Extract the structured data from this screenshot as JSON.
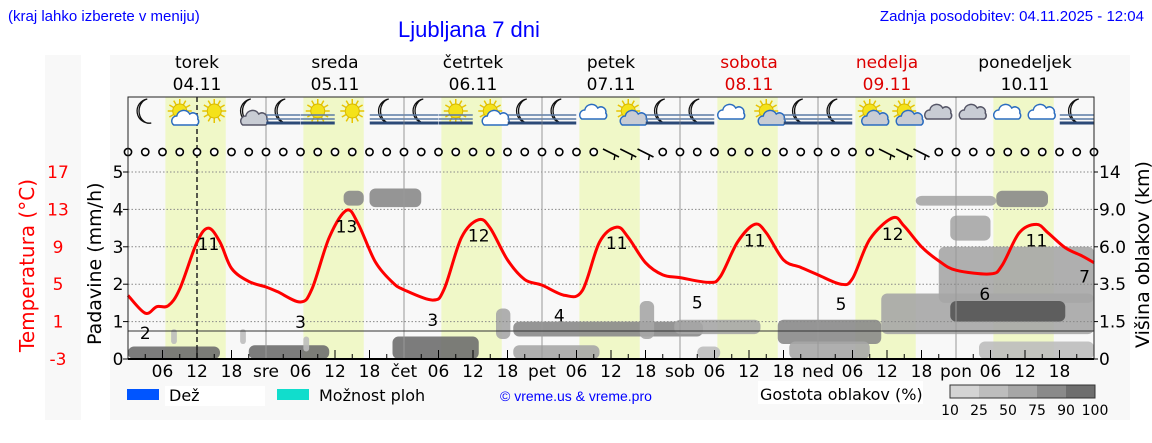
{
  "header": {
    "menu_hint": "(kraj lahko izberete v meniju)",
    "title": "Ljubljana 7 dni",
    "updated": "Zadnja posodobitev: 04.11.2025 - 12:04"
  },
  "footer": {
    "legend_rain": "Dež",
    "legend_showers": "Možnost ploh",
    "copyright": "© vreme.us & vreme.pro",
    "cloud_density_label": "Gostota oblakov (%)",
    "cloud_density_scale": [
      "10",
      "25",
      "50",
      "75",
      "90",
      "100"
    ]
  },
  "colors": {
    "temperature": "#ff0000",
    "rain": "#0055ff",
    "showers": "#11ddcc",
    "daylight": "#f0f8c8",
    "links": "#0000ff",
    "weekend": "#dd0000"
  },
  "chart_data": {
    "type": "line",
    "title": "Ljubljana 7 dni",
    "x_unit": "hours from torek 04.11 00:00",
    "now_marker_hour": 12,
    "days": [
      {
        "name": "torek",
        "date": "04.11",
        "abbr": "",
        "weekend": false
      },
      {
        "name": "sreda",
        "date": "05.11",
        "abbr": "sre",
        "weekend": false
      },
      {
        "name": "četrtek",
        "date": "06.11",
        "abbr": "čet",
        "weekend": false
      },
      {
        "name": "petek",
        "date": "07.11",
        "abbr": "pet",
        "weekend": false
      },
      {
        "name": "sobota",
        "date": "08.11",
        "abbr": "sob",
        "weekend": true
      },
      {
        "name": "nedelja",
        "date": "09.11",
        "abbr": "ned",
        "weekend": true
      },
      {
        "name": "ponedeljek",
        "date": "10.11",
        "abbr": "pon",
        "weekend": false
      }
    ],
    "hour_ticks": [
      "06",
      "12",
      "18"
    ],
    "daylight_hours": [
      6.5,
      17
    ],
    "axes": {
      "temperature": {
        "label": "Temperatura (°C)",
        "ticks": [
          17,
          13,
          9,
          5,
          1,
          -3
        ],
        "range": [
          -3,
          17
        ]
      },
      "precipitation": {
        "label": "Padavine (mm/h)",
        "ticks": [
          0,
          1,
          2,
          3,
          4,
          5
        ],
        "range": [
          0,
          5
        ]
      },
      "cloud_height": {
        "label": "Višina oblakov (km)",
        "ticks": [
          "0",
          "1.5",
          "3.5",
          "6.0",
          "9.0",
          "14"
        ]
      }
    },
    "temperature_series": {
      "hours": [
        0,
        3,
        5,
        7,
        9,
        12,
        14,
        16,
        18,
        21,
        24,
        26,
        30,
        32,
        35,
        38,
        40,
        43,
        46,
        48,
        53,
        55,
        58,
        61,
        63,
        66,
        69,
        72,
        76,
        79,
        82,
        85,
        87,
        90,
        93,
        96,
        101,
        103,
        106,
        109,
        111,
        114,
        117,
        120,
        124,
        126,
        129,
        133,
        135,
        138,
        141,
        144,
        150,
        152,
        155,
        158,
        160,
        163,
        166,
        168
      ],
      "values": [
        3.8,
        1.9,
        2.6,
        2.7,
        4.5,
        9.5,
        11.0,
        9.5,
        6.7,
        5.3,
        4.7,
        4.2,
        3.1,
        4.5,
        10.0,
        12.9,
        11.5,
        7.4,
        5.2,
        4.4,
        3.3,
        4.5,
        10.0,
        11.9,
        11.0,
        7.6,
        5.5,
        4.9,
        3.8,
        4.3,
        9.5,
        11.1,
        10.0,
        7.3,
        6.0,
        5.7,
        5.2,
        5.8,
        9.5,
        11.4,
        10.5,
        7.6,
        6.8,
        6.0,
        5.0,
        5.6,
        9.8,
        12.1,
        11.2,
        9.0,
        7.5,
        6.5,
        6.1,
        7.0,
        10.5,
        11.4,
        10.5,
        8.9,
        8.0,
        7.3
      ]
    },
    "temperature_labels": [
      {
        "hour": 3,
        "value": "2",
        "kind": "min"
      },
      {
        "hour": 14,
        "value": "11",
        "kind": "max"
      },
      {
        "hour": 30,
        "value": "3",
        "kind": "min"
      },
      {
        "hour": 38,
        "value": "13",
        "kind": "max"
      },
      {
        "hour": 53,
        "value": "3",
        "kind": "min"
      },
      {
        "hour": 61,
        "value": "12",
        "kind": "max"
      },
      {
        "hour": 75,
        "value": "4",
        "kind": "min"
      },
      {
        "hour": 85,
        "value": "11",
        "kind": "max"
      },
      {
        "hour": 99,
        "value": "5",
        "kind": "min"
      },
      {
        "hour": 109,
        "value": "11",
        "kind": "max"
      },
      {
        "hour": 124,
        "value": "5",
        "kind": "min"
      },
      {
        "hour": 133,
        "value": "12",
        "kind": "max"
      },
      {
        "hour": 149,
        "value": "6",
        "kind": "min"
      },
      {
        "hour": 158,
        "value": "11",
        "kind": "max"
      },
      {
        "hour": 168,
        "value": "7",
        "kind": "end"
      }
    ],
    "precipitation_mm_h": [],
    "cloud_patches": [
      {
        "h0": 0,
        "h1": 16,
        "km0": 0,
        "km1": 0.5,
        "density": 90
      },
      {
        "h0": 7.5,
        "h1": 8.5,
        "km0": 0.6,
        "km1": 1.2,
        "density": 25
      },
      {
        "h0": 19.5,
        "h1": 20.5,
        "km0": 0.6,
        "km1": 1.2,
        "density": 25
      },
      {
        "h0": 21,
        "h1": 35,
        "km0": 0,
        "km1": 0.55,
        "density": 90
      },
      {
        "h0": 30.5,
        "h1": 31.5,
        "km0": 0.3,
        "km1": 0.9,
        "density": 25
      },
      {
        "h0": 37.5,
        "h1": 41,
        "km0": 9.5,
        "km1": 11.5,
        "density": 75
      },
      {
        "h0": 42,
        "h1": 51,
        "km0": 9.3,
        "km1": 11.8,
        "density": 75
      },
      {
        "h0": 46,
        "h1": 61,
        "km0": 0,
        "km1": 0.9,
        "density": 90
      },
      {
        "h0": 64,
        "h1": 66.5,
        "km0": 0.8,
        "km1": 2.2,
        "density": 50
      },
      {
        "h0": 67,
        "h1": 100,
        "km0": 0.9,
        "km1": 1.5,
        "density": 75
      },
      {
        "h0": 67,
        "h1": 82,
        "km0": 0,
        "km1": 0.55,
        "density": 50
      },
      {
        "h0": 89,
        "h1": 91.5,
        "km0": 0.8,
        "km1": 2.6,
        "density": 50
      },
      {
        "h0": 95,
        "h1": 110,
        "km0": 1.0,
        "km1": 1.6,
        "density": 50
      },
      {
        "h0": 99,
        "h1": 103,
        "km0": 0,
        "km1": 0.5,
        "density": 25
      },
      {
        "h0": 113,
        "h1": 131,
        "km0": 0.6,
        "km1": 1.6,
        "density": 75
      },
      {
        "h0": 115,
        "h1": 129,
        "km0": 0,
        "km1": 0.7,
        "density": 50
      },
      {
        "h0": 131,
        "h1": 168,
        "km0": 1.0,
        "km1": 3.0,
        "density": 50
      },
      {
        "h0": 141,
        "h1": 168,
        "km0": 2.5,
        "km1": 6.0,
        "density": 50
      },
      {
        "h0": 143,
        "h1": 163,
        "km0": 1.5,
        "km1": 2.6,
        "density": 100
      },
      {
        "h0": 137,
        "h1": 151,
        "km0": 9.5,
        "km1": 10.8,
        "density": 50
      },
      {
        "h0": 151,
        "h1": 160,
        "km0": 9.3,
        "km1": 11.5,
        "density": 75
      },
      {
        "h0": 143,
        "h1": 150,
        "km0": 6.5,
        "km1": 8.5,
        "density": 50
      },
      {
        "h0": 148,
        "h1": 168,
        "km0": 0,
        "km1": 0.7,
        "density": 25
      }
    ],
    "weather_icons": [
      "moon",
      "sun-cloud",
      "sun",
      "moon-cloud",
      "moon-fog",
      "sun-fog",
      "sun",
      "moon-fog",
      "moon-fog",
      "sun-fog",
      "sun-cloud",
      "moon-fog",
      "moon-fog",
      "cloud",
      "sun-cloud",
      "moon-fog",
      "moon-fog",
      "cloud",
      "sun-cloud",
      "moon-fog",
      "moon-fog",
      "sun-cloud",
      "sun-cloud",
      "cloud-grey",
      "cloud-grey",
      "cloud",
      "cloud",
      "moon-fog"
    ],
    "wind": {
      "interval_hours": 3,
      "barbs_at_hours": [
        84,
        87,
        90,
        132,
        135,
        138
      ],
      "note_calm": "circle"
    }
  }
}
